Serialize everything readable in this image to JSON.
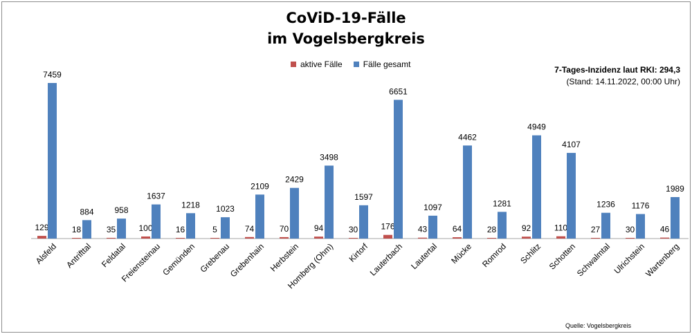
{
  "chart_data": {
    "type": "bar",
    "title": "CoViD-19-Fälle",
    "subtitle": "im Vogelsbergkreis",
    "categories": [
      "Alsfeld",
      "Antrifttal",
      "Feldatal",
      "Freiensteinau",
      "Gemünden",
      "Grebenau",
      "Grebenhain",
      "Herbstein",
      "Homberg (Ohm)",
      "Kirtorf",
      "Lauterbach",
      "Lautertal",
      "Mücke",
      "Romrod",
      "Schlitz",
      "Schotten",
      "Schwalmtal",
      "Ulrichstein",
      "Wartenberg"
    ],
    "series": [
      {
        "name": "aktive Fälle",
        "color": "#c0504d",
        "values": [
          129,
          18,
          35,
          100,
          16,
          5,
          74,
          70,
          94,
          30,
          176,
          43,
          64,
          28,
          92,
          110,
          27,
          30,
          46
        ]
      },
      {
        "name": "Fälle gesamt",
        "color": "#4f81bd",
        "values": [
          7459,
          884,
          958,
          1637,
          1218,
          1023,
          2109,
          2429,
          3498,
          1597,
          6651,
          1097,
          4462,
          1281,
          4949,
          4107,
          1236,
          1176,
          1989
        ]
      }
    ],
    "ylim": [
      0,
      8000
    ],
    "grid": false,
    "legend_position": "top-center"
  },
  "incidence": {
    "label": "7-Tages-Inzidenz laut RKI: 294,3",
    "stand": "(Stand: 14.11.2022, 00:00 Uhr)"
  },
  "source": "Quelle: Vogelsbergkreis"
}
